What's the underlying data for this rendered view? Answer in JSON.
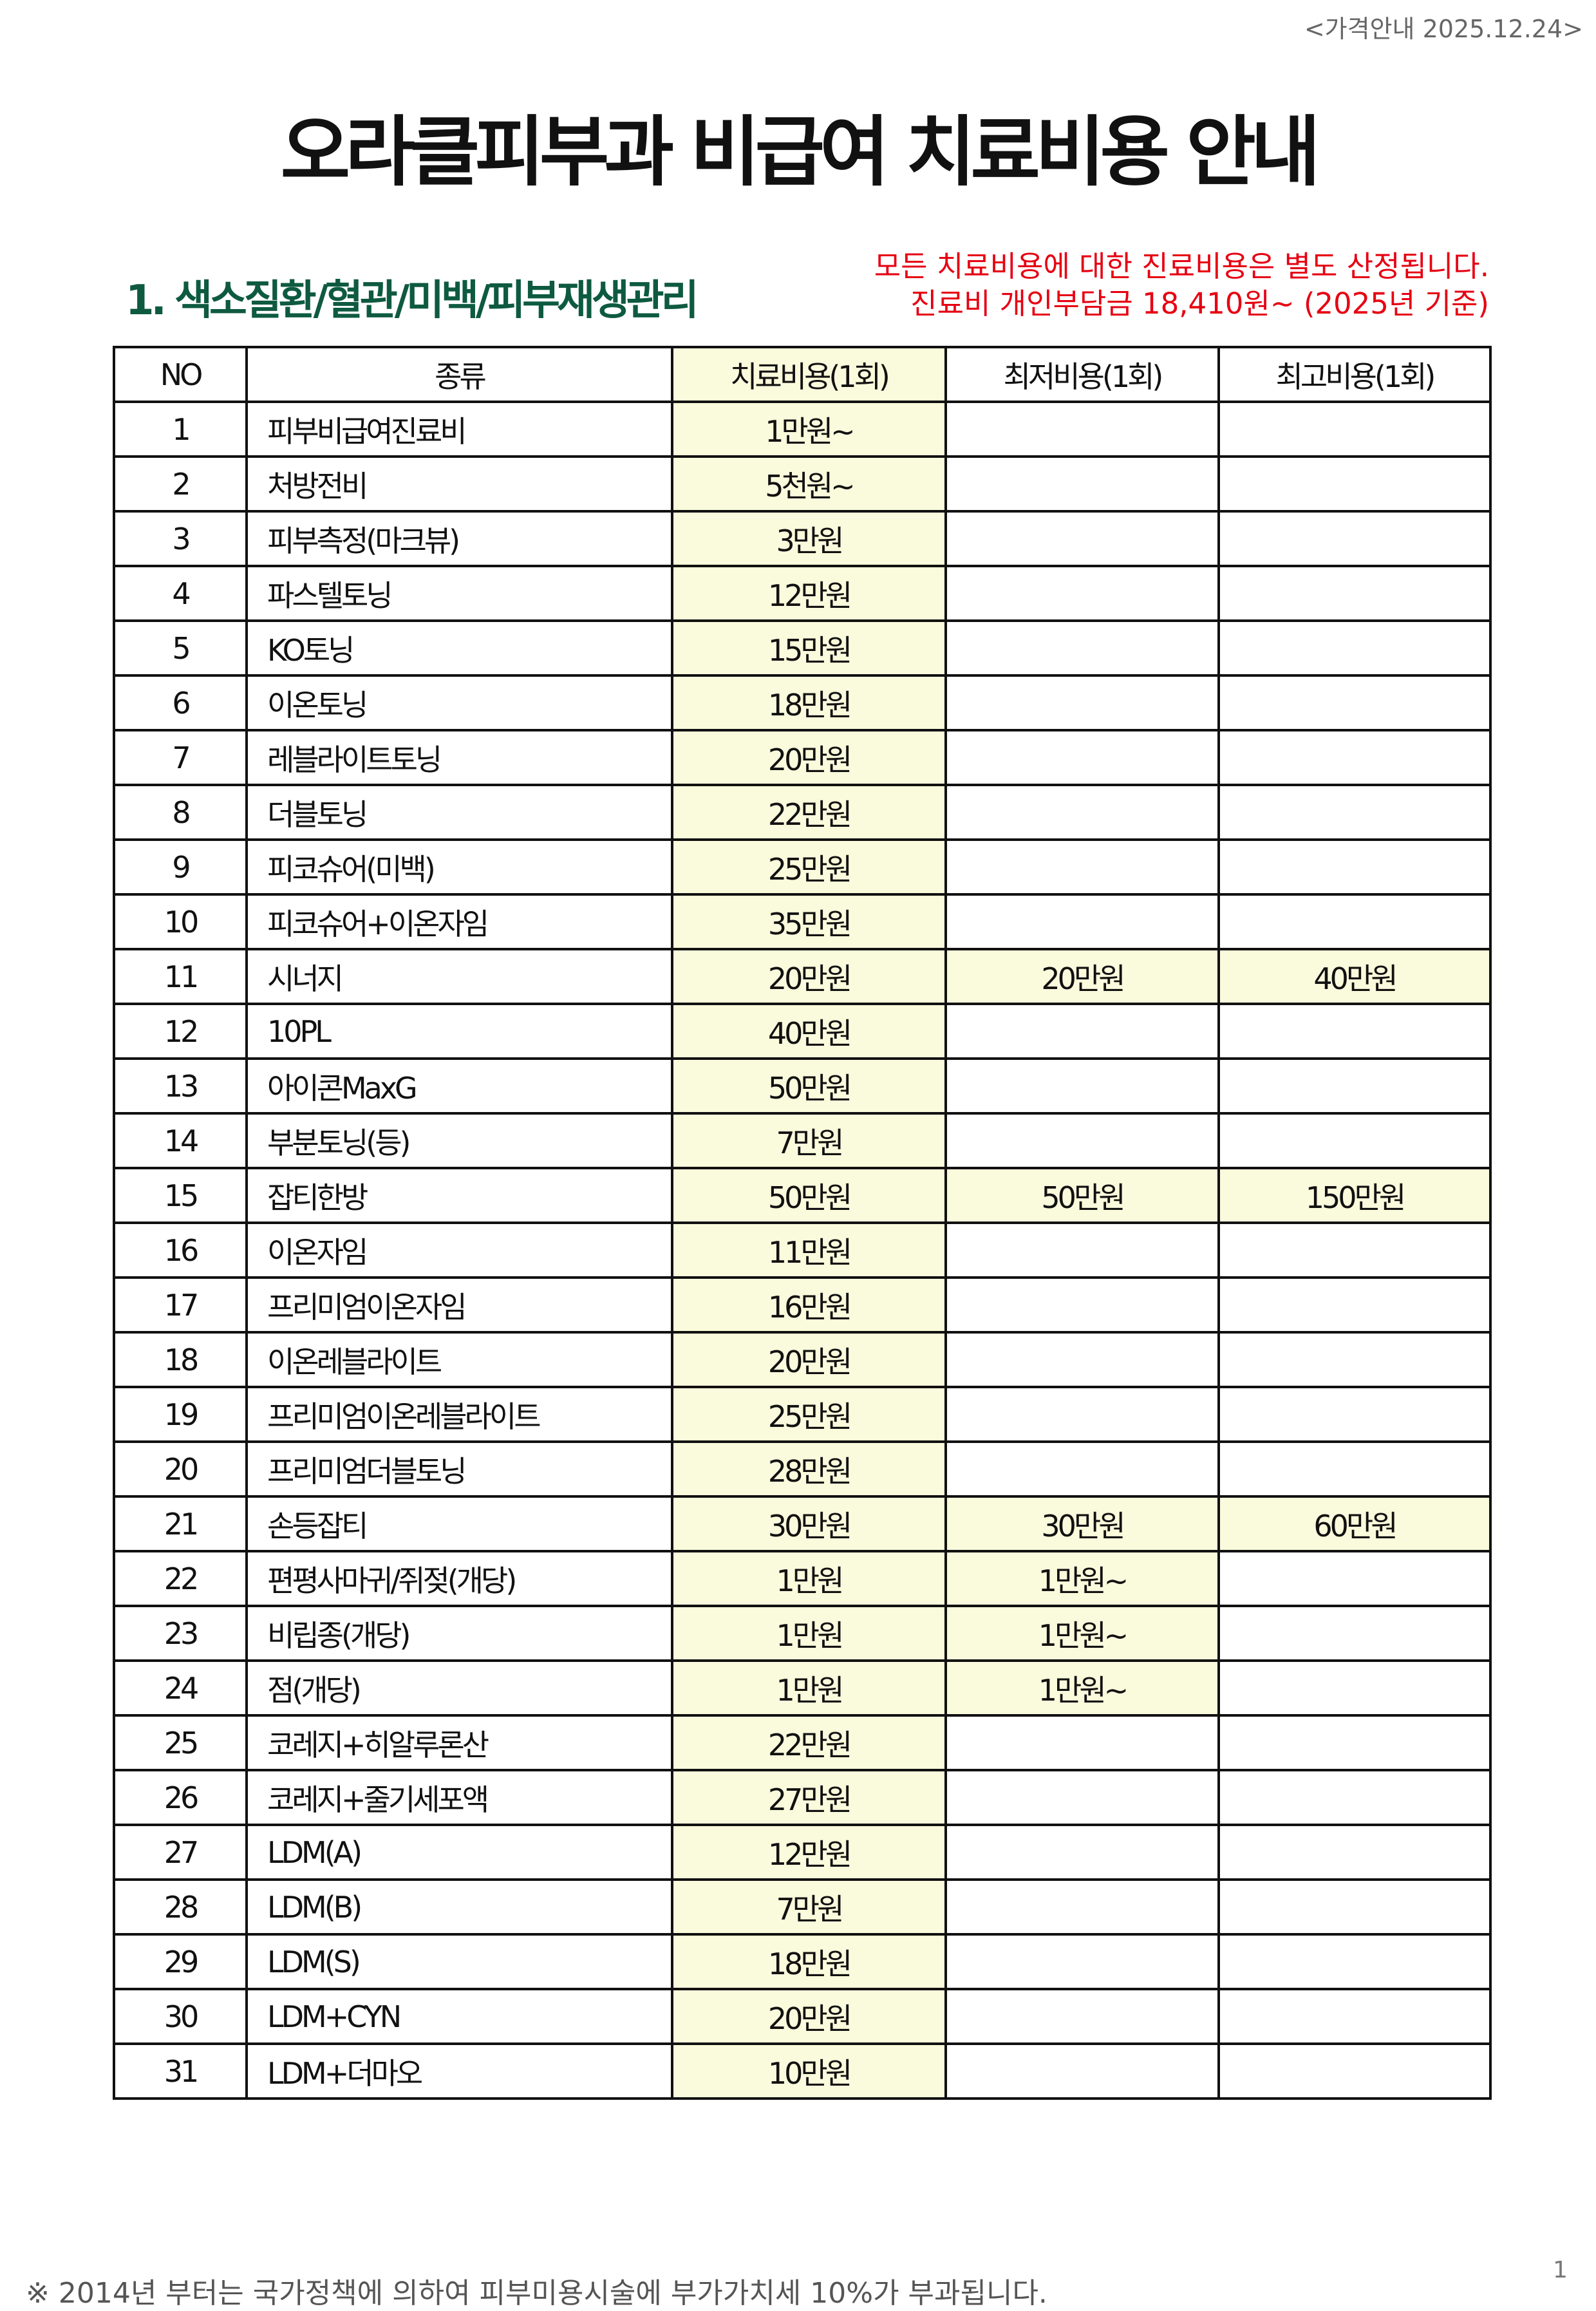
{
  "header": {
    "date_label": "<가격안내 2025.12.24>",
    "title": "오라클피부과 비급여 치료비용 안내"
  },
  "section_title": "1. 색소질환/혈관/미백/피부재생관리",
  "notice": [
    "모든 치료비용에 대한 진료비용은 별도 산정됩니다.",
    "진료비 개인부담금 18,410원~ (2025년 기준)"
  ],
  "colors": {
    "highlight": "#fafadc",
    "section": "#0e5a40",
    "notice": "#e60012"
  },
  "table": {
    "columns": [
      "NO",
      "종류",
      "치료비용(1회)",
      "최저비용(1회)",
      "최고비용(1회)"
    ],
    "rows": [
      [
        "1",
        "피부비급여진료비",
        "1만원~",
        "",
        ""
      ],
      [
        "2",
        "처방전비",
        "5천원~",
        "",
        ""
      ],
      [
        "3",
        "피부측정(마크뷰)",
        "3만원",
        "",
        ""
      ],
      [
        "4",
        "파스텔토닝",
        "12만원",
        "",
        ""
      ],
      [
        "5",
        "KO토닝",
        "15만원",
        "",
        ""
      ],
      [
        "6",
        "이온토닝",
        "18만원",
        "",
        ""
      ],
      [
        "7",
        "레블라이트토닝",
        "20만원",
        "",
        ""
      ],
      [
        "8",
        "더블토닝",
        "22만원",
        "",
        ""
      ],
      [
        "9",
        "피코슈어(미백)",
        "25만원",
        "",
        ""
      ],
      [
        "10",
        "피코슈어+이온자임",
        "35만원",
        "",
        ""
      ],
      [
        "11",
        "시너지",
        "20만원",
        "20만원",
        "40만원"
      ],
      [
        "12",
        "10PL",
        "40만원",
        "",
        ""
      ],
      [
        "13",
        "아이콘MaxG",
        "50만원",
        "",
        ""
      ],
      [
        "14",
        "부분토닝(등)",
        "7만원",
        "",
        ""
      ],
      [
        "15",
        "잡티한방",
        "50만원",
        "50만원",
        "150만원"
      ],
      [
        "16",
        "이온자임",
        "11만원",
        "",
        ""
      ],
      [
        "17",
        "프리미엄이온자임",
        "16만원",
        "",
        ""
      ],
      [
        "18",
        "이온레블라이트",
        "20만원",
        "",
        ""
      ],
      [
        "19",
        "프리미엄이온레블라이트",
        "25만원",
        "",
        ""
      ],
      [
        "20",
        "프리미엄더블토닝",
        "28만원",
        "",
        ""
      ],
      [
        "21",
        "손등잡티",
        "30만원",
        "30만원",
        "60만원"
      ],
      [
        "22",
        "편평사마귀/쥐젖(개당)",
        "1만원",
        "1만원~",
        ""
      ],
      [
        "23",
        "비립종(개당)",
        "1만원",
        "1만원~",
        ""
      ],
      [
        "24",
        "점(개당)",
        "1만원",
        "1만원~",
        ""
      ],
      [
        "25",
        "코레지+히알루론산",
        "22만원",
        "",
        ""
      ],
      [
        "26",
        "코레지+줄기세포액",
        "27만원",
        "",
        ""
      ],
      [
        "27",
        "LDM(A)",
        "12만원",
        "",
        ""
      ],
      [
        "28",
        "LDM(B)",
        "7만원",
        "",
        ""
      ],
      [
        "29",
        "LDM(S)",
        "18만원",
        "",
        ""
      ],
      [
        "30",
        "LDM+CYN",
        "20만원",
        "",
        ""
      ],
      [
        "31",
        "LDM+더마오",
        "10만원",
        "",
        ""
      ]
    ]
  },
  "footer": "※ 2014년 부터는 국가정책에 의하여 피부미용시술에 부가가치세 10%가 부과됩니다.",
  "page_number": "1"
}
